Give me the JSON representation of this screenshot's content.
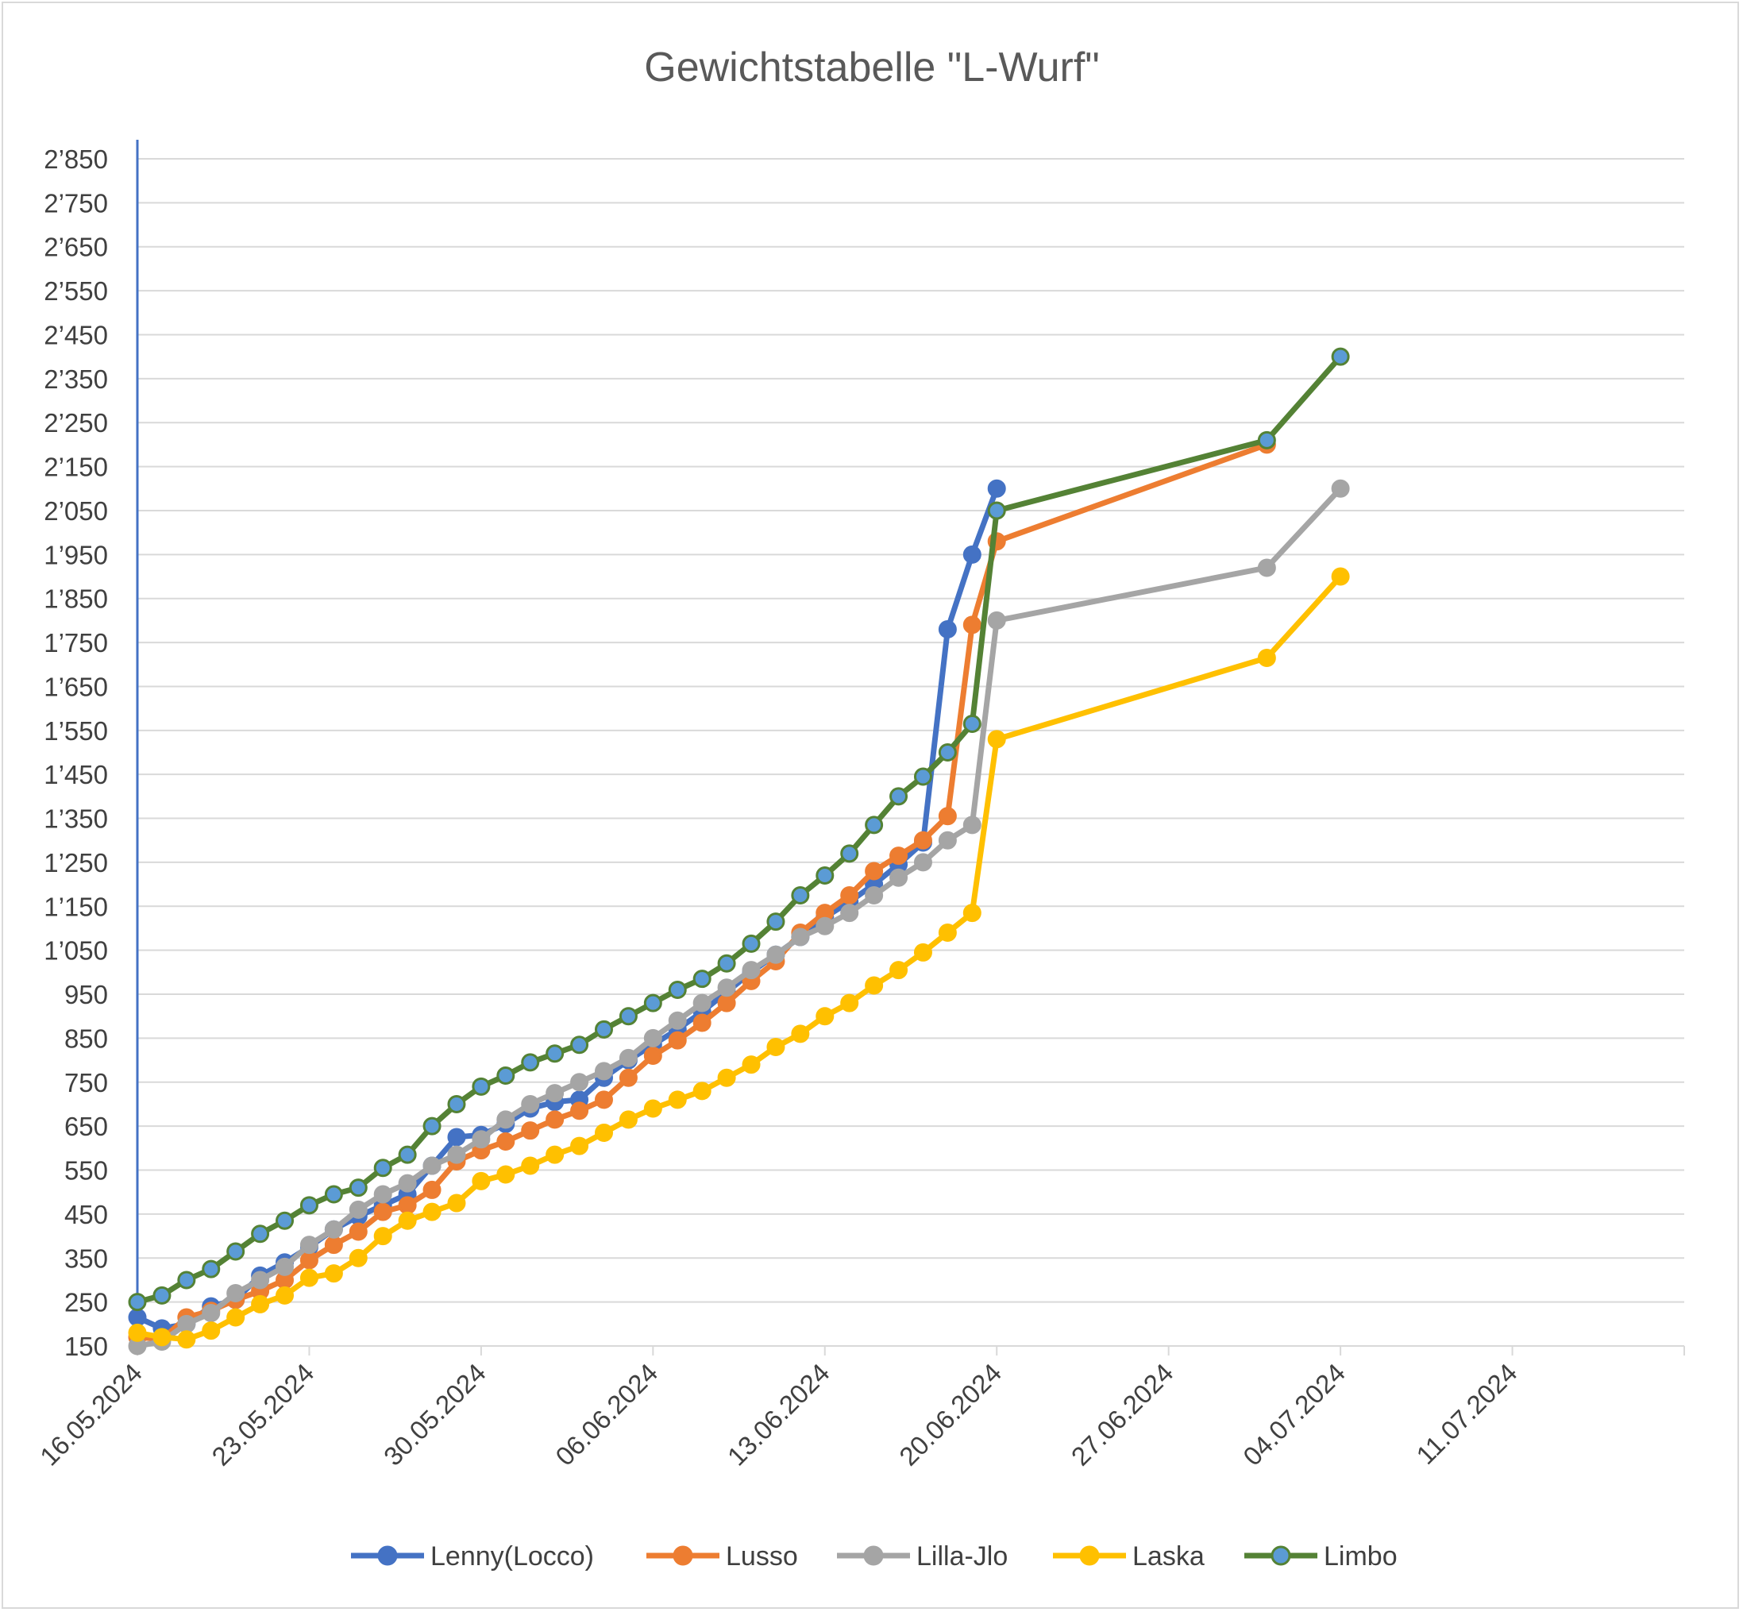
{
  "chart_data": {
    "type": "line",
    "title": "Gewichtstabelle \"L-Wurf\"",
    "xlabel": "",
    "ylabel": "",
    "x_is_date": true,
    "x_ticks": [
      "16.05.2024",
      "23.05.2024",
      "30.05.2024",
      "06.06.2024",
      "13.06.2024",
      "20.06.2024",
      "27.06.2024",
      "04.07.2024",
      "11.07.2024"
    ],
    "xlim": [
      "16.05.2024",
      "18.07.2024"
    ],
    "y_ticks": [
      "150",
      "250",
      "350",
      "450",
      "550",
      "650",
      "750",
      "850",
      "950",
      "1’050",
      "1’150",
      "1’250",
      "1’350",
      "1’450",
      "1’550",
      "1’650",
      "1’750",
      "1’850",
      "1’950",
      "2’050",
      "2’150",
      "2’250",
      "2’350",
      "2’450",
      "2’550",
      "2’650",
      "2’750",
      "2’850"
    ],
    "ylim": [
      150,
      2850
    ],
    "grid": "horizontal",
    "legend_position": "bottom",
    "x": [
      "16.05.2024",
      "17.05.2024",
      "18.05.2024",
      "19.05.2024",
      "20.05.2024",
      "21.05.2024",
      "22.05.2024",
      "23.05.2024",
      "24.05.2024",
      "25.05.2024",
      "26.05.2024",
      "27.05.2024",
      "28.05.2024",
      "29.05.2024",
      "30.05.2024",
      "31.05.2024",
      "01.06.2024",
      "02.06.2024",
      "03.06.2024",
      "04.06.2024",
      "05.06.2024",
      "06.06.2024",
      "07.06.2024",
      "08.06.2024",
      "09.06.2024",
      "10.06.2024",
      "11.06.2024",
      "12.06.2024",
      "13.06.2024",
      "14.06.2024",
      "15.06.2024",
      "16.06.2024",
      "17.06.2024",
      "18.06.2024",
      "19.06.2024",
      "20.06.2024",
      "01.07.2024",
      "04.07.2024",
      "11.07.2024"
    ],
    "series": [
      {
        "name": "Lenny(Locco)",
        "color": "#4472C4",
        "marker_fill": "#4472C4",
        "values": [
          215,
          190,
          200,
          240,
          255,
          310,
          340,
          375,
          415,
          445,
          470,
          495,
          560,
          625,
          630,
          655,
          690,
          705,
          710,
          760,
          800,
          835,
          870,
          910,
          955,
          1000,
          1040,
          1080,
          1125,
          1160,
          1200,
          1245,
          1295,
          1780,
          1950,
          2100,
          null,
          null,
          null
        ]
      },
      {
        "name": "Lusso",
        "color": "#ED7D31",
        "marker_fill": "#ED7D31",
        "values": [
          170,
          165,
          215,
          230,
          255,
          275,
          300,
          345,
          380,
          410,
          455,
          470,
          505,
          570,
          595,
          615,
          640,
          665,
          685,
          710,
          760,
          810,
          845,
          885,
          930,
          980,
          1025,
          1090,
          1135,
          1175,
          1230,
          1265,
          1300,
          1355,
          1790,
          1980,
          2200,
          null,
          null
        ]
      },
      {
        "name": "Lilla-Jlo",
        "color": "#A5A5A5",
        "marker_fill": "#A5A5A5",
        "values": [
          150,
          160,
          200,
          225,
          270,
          300,
          330,
          380,
          415,
          460,
          495,
          520,
          560,
          585,
          620,
          665,
          700,
          725,
          750,
          775,
          805,
          850,
          890,
          930,
          965,
          1005,
          1040,
          1080,
          1105,
          1135,
          1175,
          1215,
          1250,
          1300,
          1335,
          1800,
          1920,
          2100,
          null
        ]
      },
      {
        "name": "Laska",
        "color": "#FFC000",
        "marker_fill": "#FFC000",
        "values": [
          180,
          170,
          165,
          185,
          215,
          245,
          265,
          305,
          315,
          350,
          400,
          435,
          455,
          475,
          525,
          540,
          560,
          585,
          605,
          635,
          665,
          690,
          710,
          730,
          760,
          790,
          830,
          860,
          900,
          930,
          970,
          1005,
          1045,
          1090,
          1135,
          1530,
          1715,
          1900,
          null
        ]
      },
      {
        "name": "Limbo",
        "color": "#548235",
        "marker_fill": "#5B9BD5",
        "values": [
          250,
          265,
          300,
          325,
          365,
          405,
          435,
          470,
          495,
          510,
          555,
          585,
          650,
          700,
          740,
          765,
          795,
          815,
          835,
          870,
          900,
          930,
          960,
          985,
          1020,
          1065,
          1115,
          1175,
          1220,
          1270,
          1335,
          1400,
          1445,
          1500,
          1565,
          2050,
          2210,
          2400,
          null
        ]
      }
    ]
  }
}
